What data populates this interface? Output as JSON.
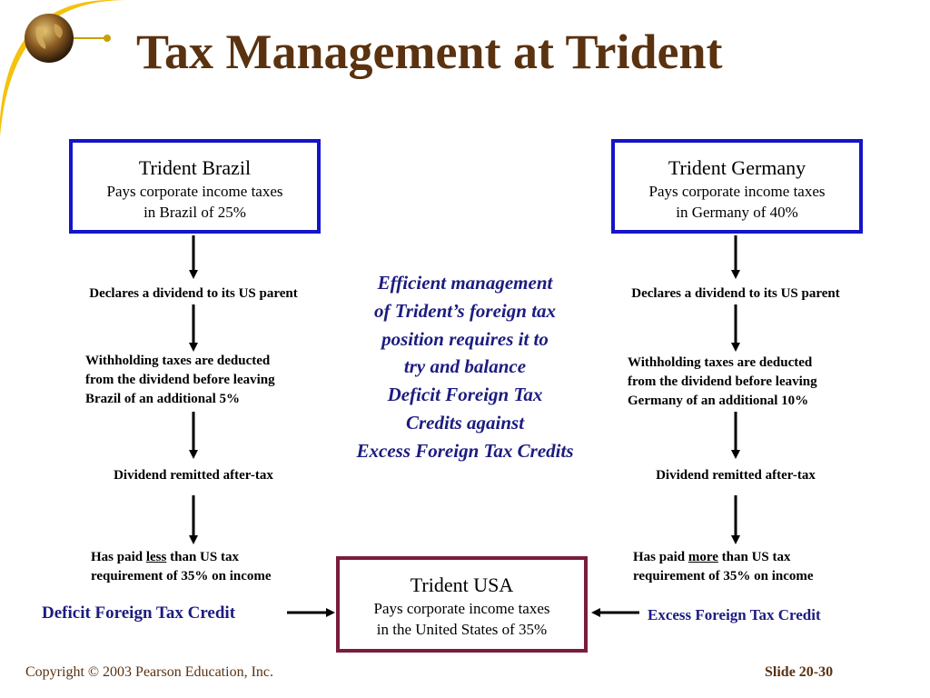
{
  "title": "Tax Management at Trident",
  "brazil_box": {
    "name": "Trident Brazil",
    "line1": "Pays corporate income taxes",
    "line2": "in Brazil of 25%"
  },
  "germany_box": {
    "name": "Trident Germany",
    "line1": "Pays corporate income taxes",
    "line2": "in Germany of 40%"
  },
  "usa_box": {
    "name": "Trident USA",
    "line1": "Pays corporate income taxes",
    "line2": "in the United States of 35%"
  },
  "left_flow": {
    "declare": "Declares a dividend to its US parent",
    "withhold": [
      "Withholding taxes are deducted",
      "from the dividend before leaving",
      "Brazil of an additional 5%"
    ],
    "remitted": "Dividend remitted after-tax",
    "paid_prefix": "Has paid ",
    "paid_emphasis": "less",
    "paid_suffix": " than US tax",
    "paid_line2": "requirement of 35% on income",
    "credit": "Deficit Foreign Tax Credit"
  },
  "right_flow": {
    "declare": "Declares a dividend to its US parent",
    "withhold": [
      "Withholding taxes are deducted",
      "from the dividend before leaving",
      "Germany of an additional 10%"
    ],
    "remitted": "Dividend remitted after-tax",
    "paid_prefix": "Has paid ",
    "paid_emphasis": "more",
    "paid_suffix": " than US tax",
    "paid_line2": "requirement of 35% on income",
    "credit": "Excess Foreign Tax Credit"
  },
  "highlight_lines": [
    "Efficient management",
    "of Trident’s foreign tax",
    "position requires it to",
    "try and balance",
    "Deficit Foreign Tax",
    "Credits against",
    "Excess Foreign Tax Credits"
  ],
  "footer": {
    "copyright": "Copyright © 2003 Pearson Education, Inc.",
    "slide": "Slide 20-30"
  },
  "colors": {
    "title": "#5a3210",
    "blue_box": "#1414c8",
    "usa_box": "#7a1c3c",
    "highlight_text": "#1c1c80",
    "corner_accent": "#f4c20d"
  },
  "icons": [
    "globe-icon",
    "arrow-down-icon",
    "arrow-right-icon",
    "arrow-left-icon"
  ]
}
